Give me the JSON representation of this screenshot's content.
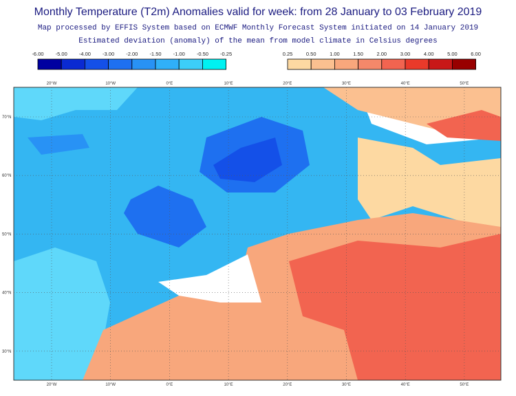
{
  "header": {
    "title": "Monthly Temperature (T2m) Anomalies valid for week: from 28 January to 03 February 2019",
    "subtitle": "Map processed by EFFIS System based on ECMWF Monthly Forecast System initiated on 14 January 2019",
    "description": "Estimated deviation (anomaly) of the mean from model climate in Celsius degrees"
  },
  "legend": {
    "negative": {
      "labels": [
        "-6.00",
        "-5.00",
        "-4.00",
        "-3.00",
        "-2.00",
        "-1.50",
        "-1.00",
        "-0.50",
        "-0.25"
      ],
      "colors": [
        "#0000a0",
        "#0a2ad2",
        "#1450e8",
        "#1e70f0",
        "#2892f5",
        "#30b0f8",
        "#3ccef8",
        "#00f2f2"
      ]
    },
    "positive": {
      "labels": [
        "0.25",
        "0.50",
        "1.00",
        "1.50",
        "2.00",
        "3.00",
        "4.00",
        "5.00",
        "6.00"
      ],
      "colors": [
        "#fdd9a2",
        "#fbc090",
        "#f8a77c",
        "#f5886a",
        "#f26450",
        "#ea3a2a",
        "#c81818",
        "#980000"
      ]
    }
  },
  "map": {
    "top_labels": [
      "20°W",
      "10°W",
      "0°E",
      "10°E",
      "20°E",
      "30°E",
      "40°E",
      "50°E"
    ],
    "bottom_labels": [
      "20°W",
      "10°W",
      "0°E",
      "10°E",
      "20°E",
      "30°E",
      "40°E",
      "50°E"
    ],
    "left_labels": [
      "70°N",
      "60°N",
      "50°N",
      "40°N",
      "30°N"
    ]
  }
}
